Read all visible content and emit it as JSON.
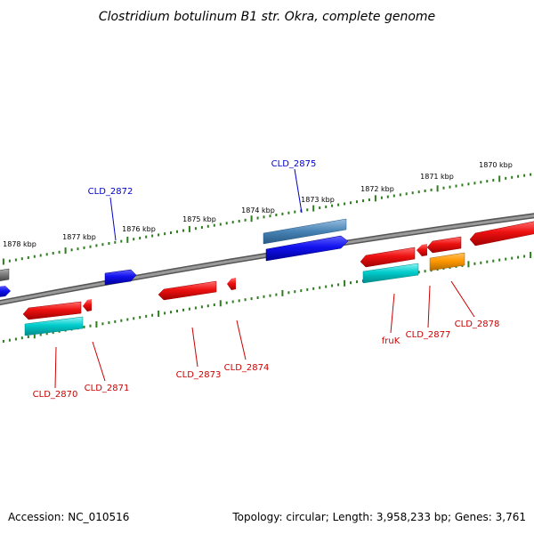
{
  "title": "Clostridium botulinum B1 str. Okra, complete genome",
  "footer": {
    "accession": "Accession: NC_010516",
    "topology": "Topology: circular; Length: 3,958,233 bp; Genes: 3,761"
  },
  "kbp_labels": [
    "1878 kbp",
    "1877 kbp",
    "1876 kbp",
    "1875 kbp",
    "1874 kbp",
    "1873 kbp",
    "1872 kbp",
    "1871 kbp",
    "1870 kbp"
  ],
  "gene_labels": {
    "above": [
      "CLD_2872",
      "CLD_2875"
    ],
    "below": [
      "CLD_2870",
      "CLD_2871",
      "CLD_2873",
      "CLD_2874",
      "fruK",
      "CLD_2877",
      "CLD_2878"
    ]
  },
  "colors": {
    "label_above": "#0000cc",
    "label_below": "#cc0000",
    "tick": "#2e7d1e",
    "backbone": "#888888",
    "gene_red": "#ee1111",
    "gene_blue": "#1111ee",
    "gene_steel": "#4682b4",
    "gene_cyan": "#00cccc",
    "gene_orange": "#ff9900",
    "gene_gray": "#777777"
  }
}
